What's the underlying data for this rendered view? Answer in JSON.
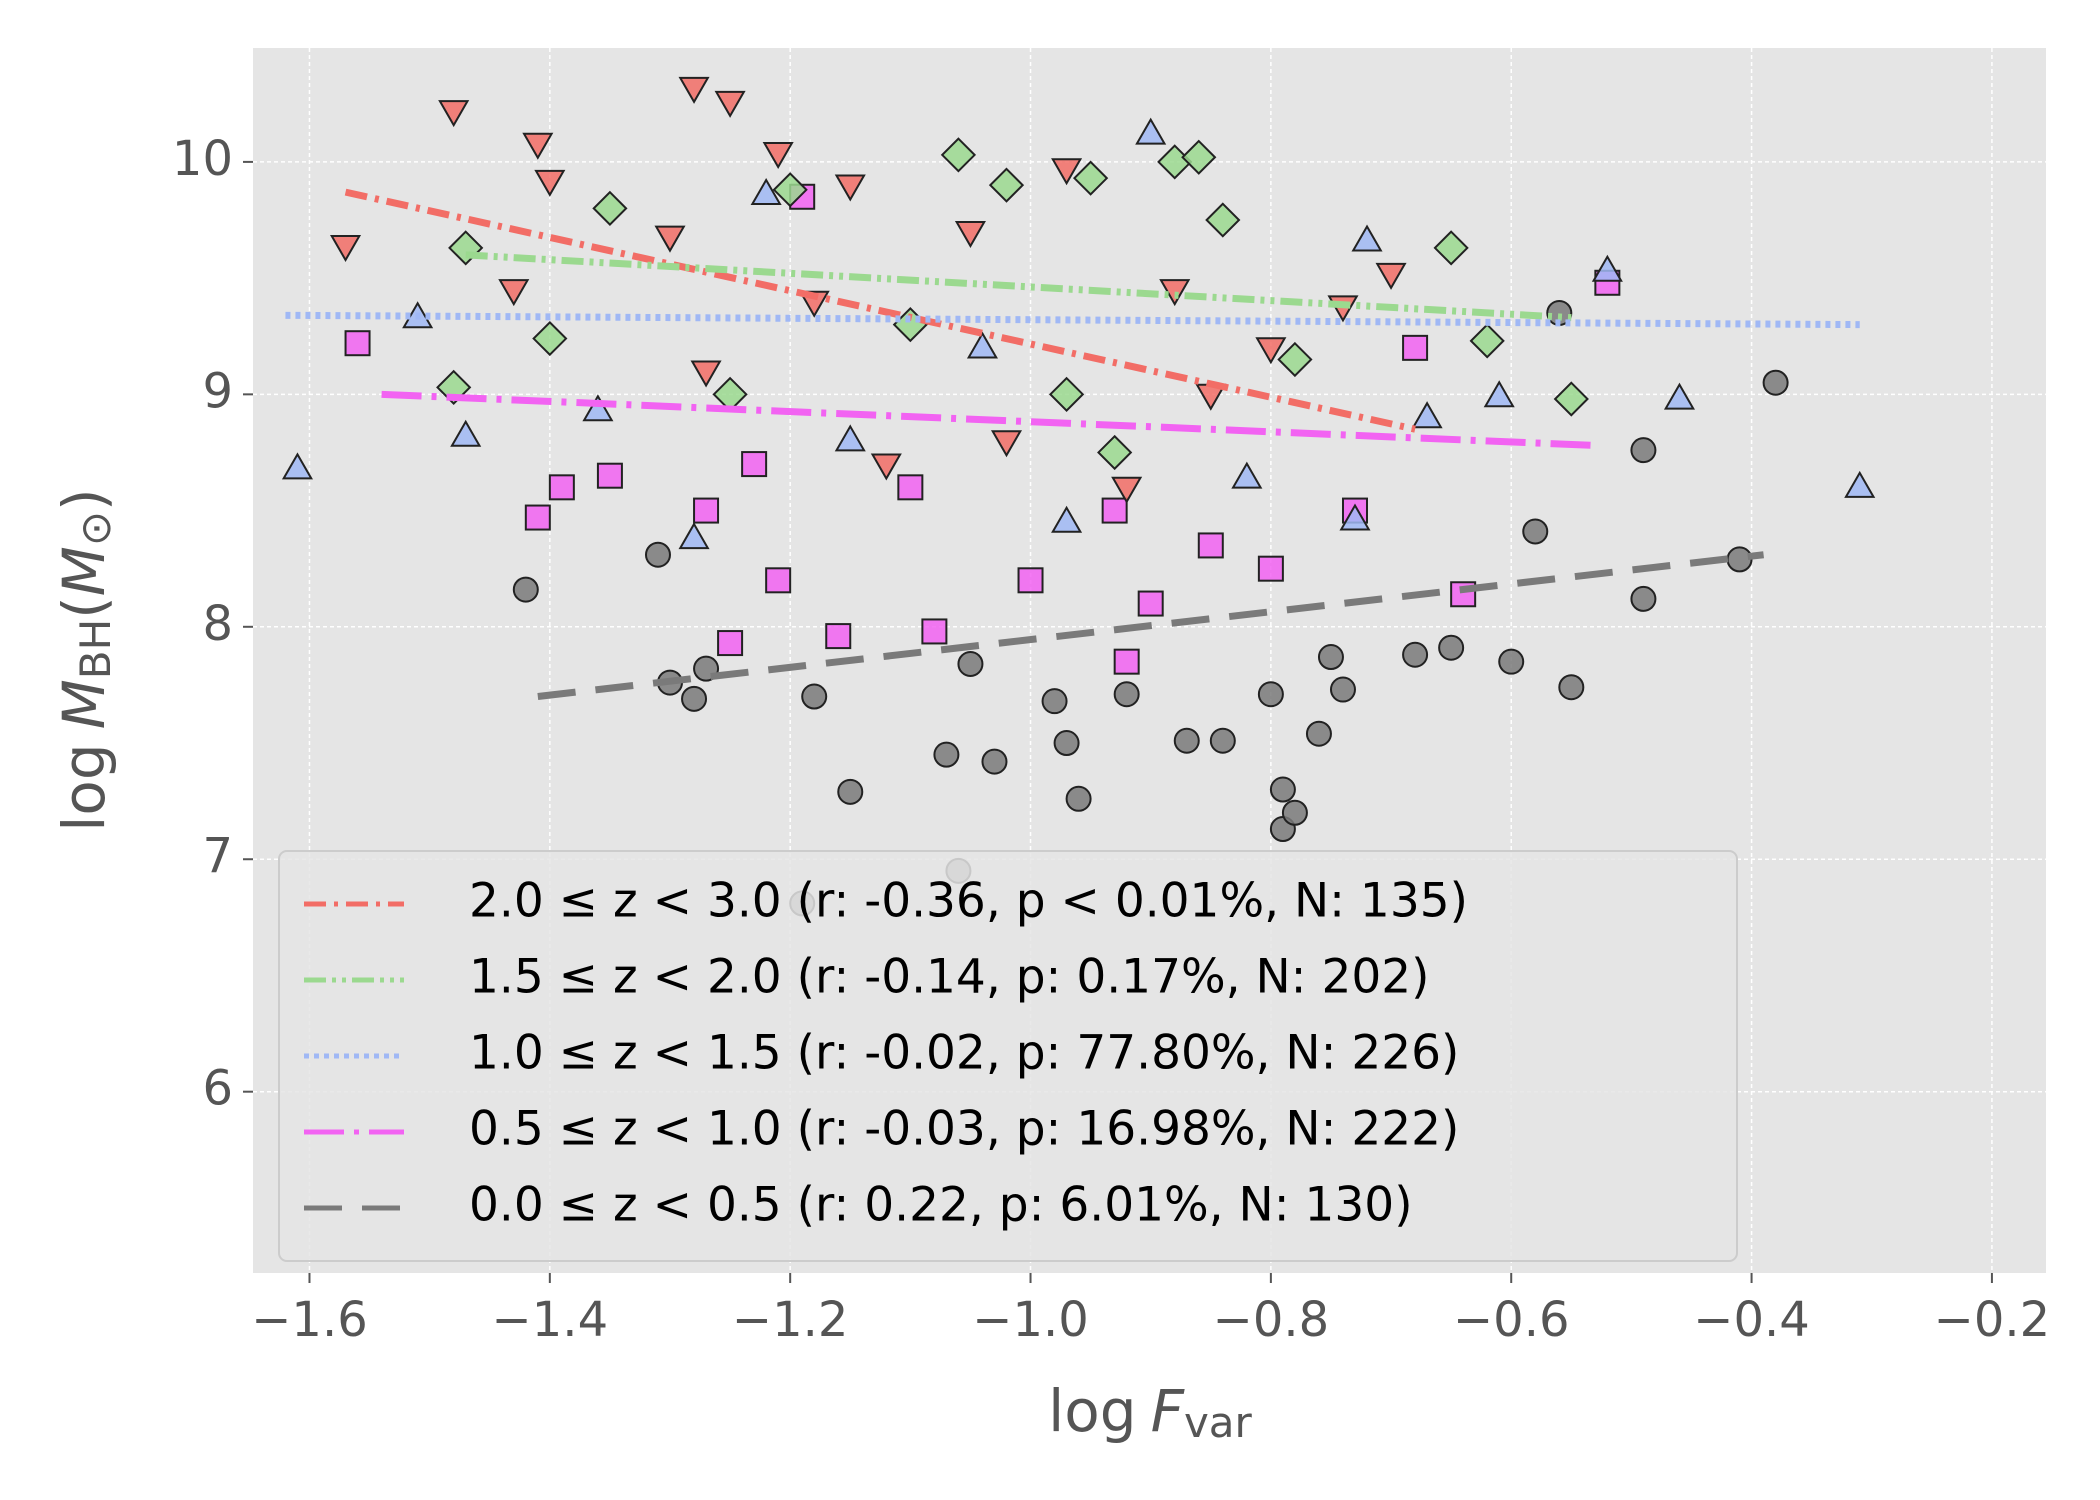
{
  "chart_data": {
    "type": "scatter",
    "xlabel": {
      "prefix": "log",
      "symbol": "F",
      "sub": "var"
    },
    "ylabel": {
      "prefix": "log",
      "symbol": "M",
      "sub": "BH",
      "open": "(",
      "unit": "M",
      "unit_sub": "⊙",
      "close": ")"
    },
    "xlim": [
      -1.647,
      -0.155
    ],
    "ylim": [
      5.22,
      10.49
    ],
    "xticks": [
      {
        "value": -1.6,
        "label": "−1.6"
      },
      {
        "value": -1.4,
        "label": "−1.4"
      },
      {
        "value": -1.2,
        "label": "−1.2"
      },
      {
        "value": -1.0,
        "label": "−1.0"
      },
      {
        "value": -0.8,
        "label": "−0.8"
      },
      {
        "value": -0.6,
        "label": "−0.6"
      },
      {
        "value": -0.4,
        "label": "−0.4"
      },
      {
        "value": -0.2,
        "label": "−0.2"
      }
    ],
    "yticks": [
      6,
      7,
      8,
      9,
      10
    ],
    "grid": true,
    "legend": "lower left",
    "series": [
      {
        "name": "2.0 ≤ z < 3.0 (r: -0.36, p < 0.01%, N: 135)",
        "color": "#f26d66",
        "marker": "triangle-down",
        "linestyle": "dashdot",
        "fit": {
          "x": [
            -1.57,
            -0.68
          ],
          "y": [
            9.87,
            8.85
          ]
        },
        "x": [
          -1.48,
          -1.28,
          -1.25,
          -1.41,
          -1.4,
          -1.57,
          -1.43,
          -1.3,
          -1.21,
          -1.15,
          -1.05,
          -0.97,
          -0.88,
          -0.8,
          -0.74,
          -0.7,
          -1.27,
          -1.12,
          -0.92,
          -1.18,
          -0.85,
          -1.02
        ],
        "y": [
          10.22,
          10.32,
          10.26,
          10.08,
          9.92,
          9.64,
          9.45,
          9.68,
          10.04,
          9.9,
          9.7,
          9.97,
          9.45,
          9.2,
          9.38,
          9.52,
          9.1,
          8.7,
          8.6,
          9.4,
          9.0,
          8.8
        ]
      },
      {
        "name": "1.5 ≤ z < 2.0 (r: -0.14, p: 0.17%, N: 202)",
        "color": "#9bd98f",
        "marker": "diamond",
        "linestyle": "dashdotdot",
        "fit": {
          "x": [
            -1.47,
            -0.55
          ],
          "y": [
            9.6,
            9.33
          ]
        },
        "x": [
          -1.06,
          -0.88,
          -0.86,
          -1.02,
          -1.2,
          -1.47,
          -1.48,
          -1.4,
          -1.35,
          -0.84,
          -0.65,
          -0.55,
          -0.62,
          -0.95,
          -1.1,
          -0.97,
          -0.78,
          -1.25,
          -0.93
        ],
        "y": [
          10.03,
          10.0,
          10.02,
          9.9,
          9.88,
          9.63,
          9.03,
          9.24,
          9.8,
          9.75,
          9.63,
          8.98,
          9.23,
          9.93,
          9.3,
          9.0,
          9.15,
          9.0,
          8.75
        ]
      },
      {
        "name": "1.0 ≤ z < 1.5 (r: -0.02, p: 77.80%, N: 226)",
        "color": "#a0b8f5",
        "marker": "triangle-up",
        "linestyle": "dotted",
        "fit": {
          "x": [
            -1.62,
            -0.31
          ],
          "y": [
            9.34,
            9.3
          ]
        },
        "x": [
          -1.61,
          -0.9,
          -1.22,
          -1.51,
          -1.47,
          -1.36,
          -1.28,
          -0.31,
          -0.46,
          -0.52,
          -0.61,
          -0.72,
          -0.67,
          -1.04,
          -0.82,
          -0.73,
          -1.15,
          -0.97
        ],
        "y": [
          8.68,
          10.12,
          9.86,
          9.33,
          8.82,
          8.93,
          8.38,
          8.6,
          8.98,
          9.53,
          8.99,
          9.66,
          8.9,
          9.2,
          8.64,
          8.46,
          8.8,
          8.45
        ]
      },
      {
        "name": "0.5 ≤ z < 1.0 (r: -0.03, p: 16.98%, N: 222)",
        "color": "#f263f2",
        "marker": "square",
        "linestyle": "longdashdot",
        "fit": {
          "x": [
            -1.54,
            -0.53
          ],
          "y": [
            9.0,
            8.78
          ]
        },
        "x": [
          -1.56,
          -1.41,
          -1.39,
          -1.35,
          -1.27,
          -1.25,
          -1.23,
          -1.21,
          -1.16,
          -1.08,
          -1.0,
          -0.93,
          -0.9,
          -0.85,
          -0.8,
          -0.73,
          -0.68,
          -0.52,
          -0.92,
          -1.1,
          -0.64,
          -1.19
        ],
        "y": [
          9.22,
          8.47,
          8.6,
          8.65,
          8.5,
          7.93,
          8.7,
          8.2,
          7.96,
          7.98,
          8.2,
          8.5,
          8.1,
          8.35,
          8.25,
          8.5,
          9.2,
          9.48,
          7.85,
          8.6,
          8.14,
          9.85
        ]
      },
      {
        "name": "0.0 ≤ z < 0.5 (r: 0.22, p: 6.01%, N: 130)",
        "color": "#7a7a7a",
        "marker": "circle",
        "linestyle": "dashed",
        "fit": {
          "x": [
            -1.41,
            -0.39
          ],
          "y": [
            7.7,
            8.31
          ]
        },
        "x": [
          -1.42,
          -1.31,
          -1.3,
          -1.27,
          -1.28,
          -1.19,
          -1.18,
          -1.15,
          -1.06,
          -1.07,
          -1.03,
          -0.98,
          -0.96,
          -0.97,
          -0.92,
          -0.87,
          -0.84,
          -0.79,
          -0.79,
          -0.78,
          -0.76,
          -0.75,
          -0.74,
          -0.68,
          -0.65,
          -0.6,
          -0.58,
          -0.55,
          -0.49,
          -0.49,
          -0.41,
          -0.38,
          -0.56,
          -0.8,
          -1.05
        ],
        "y": [
          8.16,
          8.31,
          7.76,
          7.82,
          7.69,
          6.81,
          7.7,
          7.29,
          6.95,
          7.45,
          7.42,
          7.68,
          7.26,
          7.5,
          7.71,
          7.51,
          7.51,
          7.3,
          7.13,
          7.2,
          7.54,
          7.87,
          7.73,
          7.88,
          7.91,
          7.85,
          8.41,
          7.74,
          8.12,
          8.76,
          8.29,
          9.05,
          9.35,
          7.71,
          7.84
        ]
      }
    ]
  }
}
